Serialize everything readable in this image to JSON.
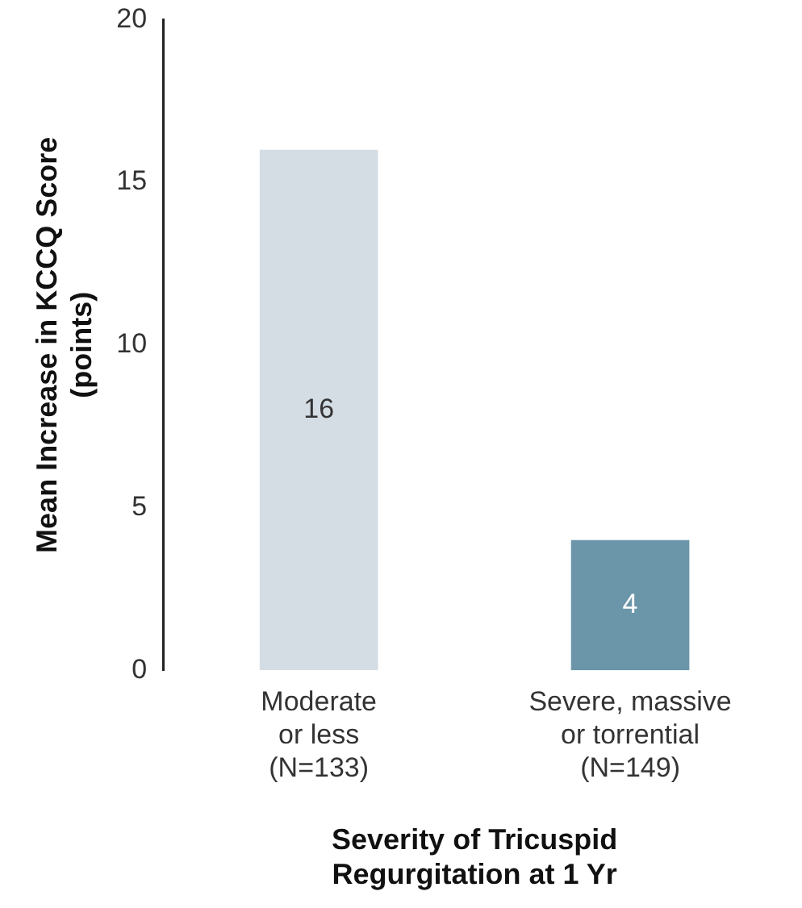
{
  "chart_data": {
    "type": "bar",
    "categories": [
      "Moderate\nor less\n(N=133)",
      "Severe, massive\nor torrential\n(N=149)"
    ],
    "values": [
      16,
      4
    ],
    "colors": [
      "#d5dde4",
      "#6b95a8"
    ],
    "xlabel": "Severity of Tricuspid\nRegurgitation at 1 Yr",
    "ylabel": "Mean Increase in KCCQ Score\n(points)",
    "ylim": [
      0,
      20
    ],
    "yticks": [
      0,
      5,
      10,
      15,
      20
    ],
    "data_labels": true,
    "grid": false,
    "legend": false
  }
}
